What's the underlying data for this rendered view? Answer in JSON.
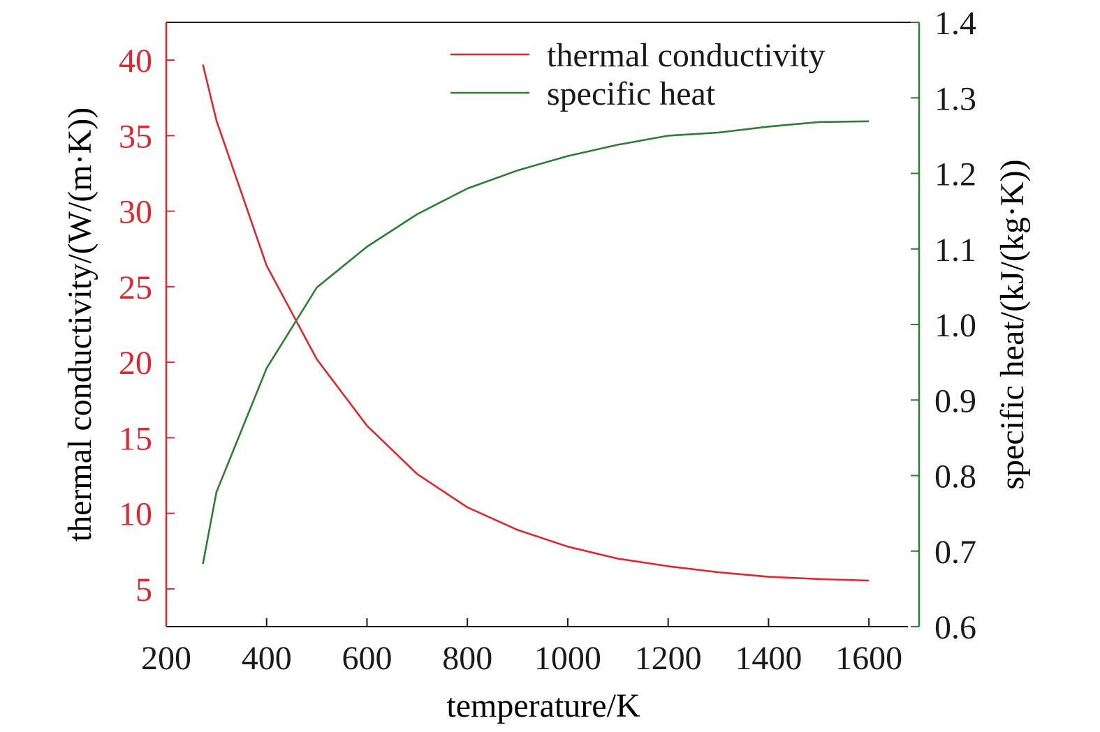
{
  "colors": {
    "left_axis": "#e0262e",
    "right_axis": "#2e7d32",
    "thermal_conductivity": "#e0262e",
    "specific_heat": "#2e7d32",
    "text": "#1a1a1a"
  },
  "chart_data": {
    "type": "line",
    "title": "",
    "xlabel": "temperature/K",
    "ylabel_left": "thermal conductivity/(W/(m·K))",
    "ylabel_right": "specific heat/(kJ/(kg·K))",
    "xlim": [
      200,
      1700
    ],
    "ylim_left": [
      2.5,
      42.5
    ],
    "ylim_right": [
      0.6,
      1.4
    ],
    "x_ticks": [
      "200",
      "400",
      "600",
      "800",
      "1000",
      "1200",
      "1400",
      "1600"
    ],
    "y_left_ticks": [
      "5",
      "10",
      "15",
      "20",
      "25",
      "30",
      "35",
      "40"
    ],
    "y_right_ticks": [
      "0.6",
      "0.7",
      "0.8",
      "0.9",
      "1.0",
      "1.1",
      "1.2",
      "1.3",
      "1.4"
    ],
    "legend_position": "top-right",
    "grid": false,
    "series": [
      {
        "name": "thermal conductivity",
        "axis": "left",
        "x": [
          273,
          300,
          400,
          500,
          600,
          700,
          800,
          900,
          1000,
          1100,
          1200,
          1300,
          1400,
          1500,
          1600
        ],
        "y": [
          39.7,
          36.0,
          26.4,
          20.2,
          15.8,
          12.6,
          10.4,
          8.9,
          7.8,
          7.0,
          6.5,
          6.1,
          5.8,
          5.65,
          5.55
        ]
      },
      {
        "name": "specific heat",
        "axis": "right",
        "x": [
          273,
          300,
          400,
          500,
          600,
          700,
          800,
          900,
          1000,
          1100,
          1200,
          1300,
          1400,
          1500,
          1600
        ],
        "y": [
          0.683,
          0.778,
          0.942,
          1.049,
          1.103,
          1.146,
          1.18,
          1.204,
          1.223,
          1.238,
          1.25,
          1.254,
          1.262,
          1.268,
          1.269
        ]
      }
    ]
  }
}
